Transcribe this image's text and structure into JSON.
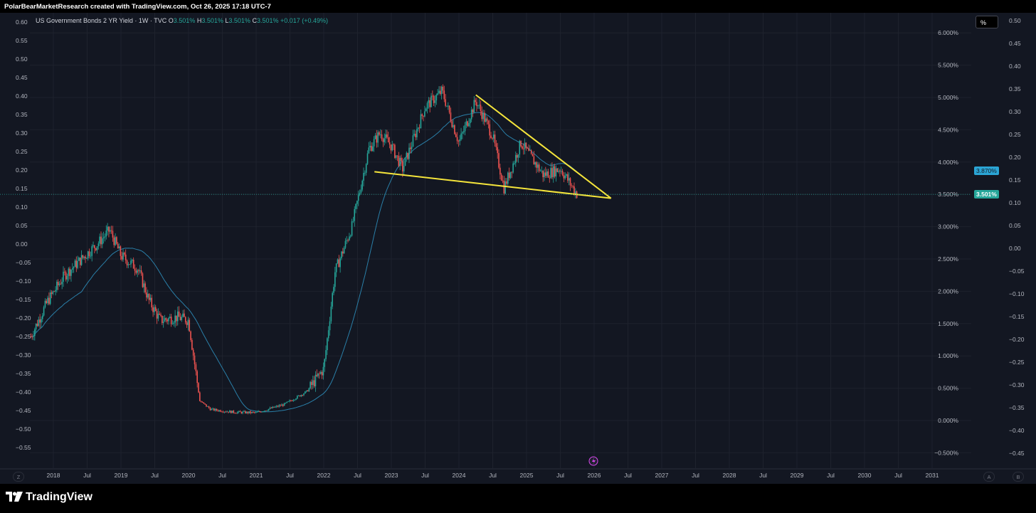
{
  "header": {
    "attribution": "PolarBearMarketResearch created with TradingView.com, Oct 26, 2025 17:18 UTC-7"
  },
  "legend": {
    "symbol": "US Government Bonds 2 YR Yield · 1W · TVC",
    "o_key": "O",
    "o_val": "3.501%",
    "h_key": "H",
    "h_val": "3.501%",
    "l_key": "L",
    "l_val": "3.501%",
    "c_key": "C",
    "c_val": "3.501%",
    "change": "+0.017 (+0.49%)"
  },
  "unit_button": "%",
  "price_tags": {
    "ma": "3.870%",
    "last": "3.501%"
  },
  "axis_buttons": {
    "left_z": "Z",
    "right_a": "A",
    "right_b": "B"
  },
  "footer": {
    "brand": "TradingView"
  },
  "colors": {
    "background": "#131722",
    "grid": "#1e222d",
    "up": "#26a69a",
    "down": "#ef5350",
    "ma": "#2a7fa8",
    "trendline": "#f5e53b",
    "text": "#b2b5be"
  },
  "chart_data": {
    "type": "candlestick",
    "title": "US Government Bonds 2 YR Yield · 1W · TVC",
    "x_ticks": [
      "2018",
      "Jul",
      "2019",
      "Jul",
      "2020",
      "Jul",
      "2021",
      "Jul",
      "2022",
      "Jul",
      "2023",
      "Jul",
      "2024",
      "Jul",
      "2025",
      "Jul",
      "2026",
      "Jul",
      "2027",
      "Jul",
      "2028",
      "Jul",
      "2029",
      "Jul",
      "2030",
      "Jul",
      "2031"
    ],
    "y_left_ticks": [
      "0.60",
      "0.55",
      "0.50",
      "0.45",
      "0.40",
      "0.35",
      "0.30",
      "0.25",
      "0.20",
      "0.15",
      "0.10",
      "0.05",
      "0.00",
      "−0.05",
      "−0.10",
      "−0.15",
      "−0.20",
      "−0.25",
      "−0.30",
      "−0.35",
      "−0.40",
      "−0.45",
      "−0.50",
      "−0.55"
    ],
    "y_right_ticks": [
      "0.50",
      "0.45",
      "0.40",
      "0.35",
      "0.30",
      "0.25",
      "0.20",
      "0.15",
      "0.10",
      "0.05",
      "0.00",
      "−0.05",
      "−0.10",
      "−0.15",
      "−0.20",
      "−0.25",
      "−0.30",
      "−0.35",
      "−0.40",
      "−0.45"
    ],
    "y_price_ticks": [
      "6.000%",
      "5.500%",
      "5.000%",
      "4.500%",
      "4.000%",
      "3.500%",
      "3.000%",
      "2.500%",
      "2.000%",
      "1.500%",
      "1.000%",
      "0.500%",
      "0.000%",
      "−0.500%"
    ],
    "price_path": [
      [
        "2017-09",
        1.3
      ],
      [
        "2017-12",
        1.85
      ],
      [
        "2018-03",
        2.25
      ],
      [
        "2018-06",
        2.5
      ],
      [
        "2018-09",
        2.75
      ],
      [
        "2018-11",
        2.95
      ],
      [
        "2019-01",
        2.55
      ],
      [
        "2019-04",
        2.35
      ],
      [
        "2019-06",
        1.85
      ],
      [
        "2019-08",
        1.55
      ],
      [
        "2019-11",
        1.6
      ],
      [
        "2020-01",
        1.55
      ],
      [
        "2020-03",
        0.3
      ],
      [
        "2020-05",
        0.17
      ],
      [
        "2020-09",
        0.13
      ],
      [
        "2021-01",
        0.12
      ],
      [
        "2021-06",
        0.25
      ],
      [
        "2021-10",
        0.45
      ],
      [
        "2022-01",
        0.8
      ],
      [
        "2022-03",
        2.3
      ],
      [
        "2022-06",
        3.0
      ],
      [
        "2022-09",
        4.2
      ],
      [
        "2022-11",
        4.45
      ],
      [
        "2023-01",
        4.25
      ],
      [
        "2023-03",
        3.9
      ],
      [
        "2023-07",
        4.85
      ],
      [
        "2023-10",
        5.1
      ],
      [
        "2024-01",
        4.3
      ],
      [
        "2024-04",
        4.95
      ],
      [
        "2024-07",
        4.4
      ],
      [
        "2024-09",
        3.6
      ],
      [
        "2024-12",
        4.3
      ],
      [
        "2025-04",
        3.8
      ],
      [
        "2025-07",
        3.9
      ],
      [
        "2025-10",
        3.5
      ]
    ],
    "moving_average": {
      "last": 3.87
    },
    "last_price": 3.501,
    "trendlines": [
      {
        "from": [
          "2024-04",
          5.04
        ],
        "to": [
          "2026-04",
          3.44
        ]
      },
      {
        "from": [
          "2022-10",
          3.85
        ],
        "to": [
          "2026-04",
          3.44
        ]
      }
    ]
  }
}
